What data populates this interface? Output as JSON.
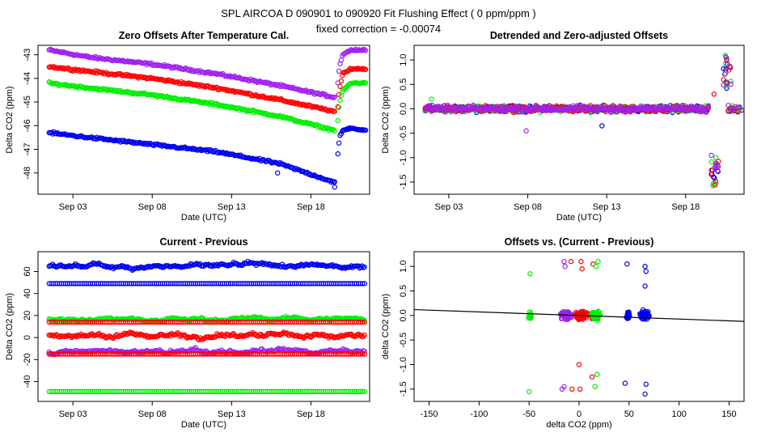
{
  "header": {
    "title": "SPL   AIRCOA D   090901 to 090920   Fit Flushing Effect ( 0 ppm/ppm )",
    "subtitle": "fixed correction = -0.00074"
  },
  "colors": {
    "purple": "#a020f0",
    "red": "#ff0000",
    "green": "#00ee00",
    "blue": "#0000ee",
    "axis": "#000000"
  },
  "chart_data": [
    {
      "type": "scatter",
      "title": "Zero Offsets After Temperature Cal.",
      "xlabel": "Date (UTC)",
      "ylabel": "Delta CO2 (ppm)",
      "xlim": [
        0.8,
        21.7
      ],
      "ylim": [
        -48.9,
        -42.6
      ],
      "xticks": [
        {
          "v": 3,
          "label": "Sep 03"
        },
        {
          "v": 8,
          "label": "Sep 08"
        },
        {
          "v": 13,
          "label": "Sep 13"
        },
        {
          "v": 18,
          "label": "Sep 18"
        }
      ],
      "yticks": [
        -48,
        -47,
        -46,
        -45,
        -44,
        -43
      ],
      "series": [
        {
          "name": "purple",
          "x": [
            1.5,
            4,
            8,
            12,
            16,
            19.5
          ],
          "y": [
            -42.8,
            -43.1,
            -43.4,
            -43.8,
            -44.3,
            -44.8
          ]
        },
        {
          "name": "red",
          "x": [
            1.5,
            4,
            8,
            12,
            16,
            19.5
          ],
          "y": [
            -43.5,
            -43.7,
            -44.0,
            -44.4,
            -44.9,
            -45.4
          ]
        },
        {
          "name": "green",
          "x": [
            1.5,
            4,
            8,
            12,
            16,
            19.5
          ],
          "y": [
            -44.2,
            -44.4,
            -44.7,
            -45.1,
            -45.6,
            -46.2
          ]
        },
        {
          "name": "blue",
          "x": [
            1.5,
            4,
            8,
            12,
            16,
            19.5
          ],
          "y": [
            -46.3,
            -46.5,
            -46.8,
            -47.1,
            -47.6,
            -48.4
          ]
        }
      ],
      "recovery": [
        {
          "name": "purple",
          "points": [
            [
              19.7,
              -44.2
            ],
            [
              19.8,
              -43.5
            ],
            [
              20,
              -43.0
            ],
            [
              20.5,
              -42.8
            ],
            [
              21.5,
              -42.8
            ]
          ]
        },
        {
          "name": "red",
          "points": [
            [
              19.7,
              -45.2
            ],
            [
              19.8,
              -44.5
            ],
            [
              20,
              -43.8
            ],
            [
              20.5,
              -43.6
            ],
            [
              21.5,
              -43.6
            ]
          ]
        },
        {
          "name": "green",
          "points": [
            [
              19.7,
              -45.8
            ],
            [
              19.8,
              -45.0
            ],
            [
              20,
              -44.5
            ],
            [
              20.5,
              -44.2
            ],
            [
              21.5,
              -44.2
            ]
          ]
        },
        {
          "name": "blue",
          "points": [
            [
              19.7,
              -47.2
            ],
            [
              19.8,
              -46.5
            ],
            [
              20,
              -46.2
            ],
            [
              20.5,
              -46.1
            ],
            [
              21.5,
              -46.2
            ]
          ]
        }
      ],
      "outliers": [
        {
          "name": "blue",
          "x": 15.9,
          "y": -48.0
        },
        {
          "name": "blue",
          "x": 19.5,
          "y": -48.6
        }
      ]
    },
    {
      "type": "scatter",
      "title": "Detrended and Zero-adjusted Offsets",
      "xlabel": "Date (UTC)",
      "ylabel": "Delta CO2 (ppm)",
      "xlim": [
        0.8,
        21.7
      ],
      "ylim": [
        -1.75,
        1.3
      ],
      "xticks": [
        {
          "v": 3,
          "label": "Sep 03"
        },
        {
          "v": 8,
          "label": "Sep 08"
        },
        {
          "v": 13,
          "label": "Sep 13"
        },
        {
          "v": 18,
          "label": "Sep 18"
        }
      ],
      "yticks": [
        -1.5,
        -1.0,
        -0.5,
        0.0,
        0.5,
        1.0
      ],
      "series_order": [
        "blue",
        "green",
        "red",
        "purple"
      ],
      "baseline_range": [
        1.5,
        19.5
      ],
      "spike_high": {
        "x": [
          20.4,
          20.9
        ],
        "y": [
          0.4,
          1.1
        ]
      },
      "spike_low": {
        "x": [
          19.6,
          20.1
        ],
        "y": [
          -1.6,
          -0.9
        ]
      },
      "tail_range": [
        20.7,
        21.6
      ],
      "outliers": [
        {
          "name": "purple",
          "x": 7.9,
          "y": -0.45
        },
        {
          "name": "blue",
          "x": 12.7,
          "y": -0.35
        },
        {
          "name": "green",
          "x": 1.9,
          "y": 0.2
        },
        {
          "name": "red",
          "x": 19.8,
          "y": 0.3
        }
      ]
    },
    {
      "type": "scatter",
      "title": "Current - Previous",
      "xlabel": "Date (UTC)",
      "ylabel": "Delta CO2 (ppm)",
      "xlim": [
        0.8,
        21.7
      ],
      "ylim": [
        -58,
        78
      ],
      "xticks": [
        {
          "v": 3,
          "label": "Sep 03"
        },
        {
          "v": 8,
          "label": "Sep 08"
        },
        {
          "v": 13,
          "label": "Sep 13"
        },
        {
          "v": 18,
          "label": "Sep 18"
        }
      ],
      "yticks": [
        -40,
        -20,
        0,
        20,
        40,
        60
      ],
      "x_range": [
        1.5,
        21.4
      ],
      "series": [
        {
          "name": "blue",
          "level": 65,
          "noise": 5
        },
        {
          "name": "blue",
          "level": 49,
          "noise": 0
        },
        {
          "name": "green",
          "level": 17,
          "noise": 4
        },
        {
          "name": "red",
          "level": 14,
          "noise": 0
        },
        {
          "name": "red",
          "level": 2,
          "noise": 6
        },
        {
          "name": "purple",
          "level": -13,
          "noise": 5
        },
        {
          "name": "red",
          "level": -15,
          "noise": 0
        },
        {
          "name": "green",
          "level": -49,
          "noise": 0
        }
      ]
    },
    {
      "type": "scatter",
      "title": "Offsets vs. (Current - Previous)",
      "xlabel": "delta CO2 (ppm)",
      "ylabel": "delta CO2 (ppm)",
      "xlim": [
        -165,
        165
      ],
      "ylim": [
        -1.75,
        1.3
      ],
      "xticks": [
        -150,
        -100,
        -50,
        0,
        50,
        100,
        150
      ],
      "yticks": [
        -1.5,
        -1.0,
        -0.5,
        0.0,
        0.5,
        1.0
      ],
      "fit_line": {
        "x": [
          -165,
          165
        ],
        "y": [
          0.12,
          -0.12
        ]
      },
      "clusters": [
        {
          "name": "green",
          "x": -49,
          "spread": 2
        },
        {
          "name": "purple",
          "x": -13,
          "spread": 8
        },
        {
          "name": "red",
          "x": 2,
          "spread": 8
        },
        {
          "name": "red",
          "x": 14,
          "spread": 2
        },
        {
          "name": "green",
          "x": 17,
          "spread": 6
        },
        {
          "name": "blue",
          "x": 49,
          "spread": 2
        },
        {
          "name": "blue",
          "x": 66,
          "spread": 7
        }
      ],
      "extremes": [
        {
          "name": "purple",
          "x": -15,
          "y": 1.1
        },
        {
          "name": "purple",
          "x": -14,
          "y": 1.0
        },
        {
          "name": "purple",
          "x": -15,
          "y": -1.45
        },
        {
          "name": "purple",
          "x": -17,
          "y": -1.5
        },
        {
          "name": "red",
          "x": -8,
          "y": 1.1
        },
        {
          "name": "red",
          "x": -7,
          "y": -1.5
        },
        {
          "name": "red",
          "x": 2,
          "y": 1.1
        },
        {
          "name": "red",
          "x": 3,
          "y": 0.95
        },
        {
          "name": "red",
          "x": 0,
          "y": -1.0
        },
        {
          "name": "red",
          "x": 1,
          "y": -1.5
        },
        {
          "name": "red",
          "x": 14,
          "y": 1.05
        },
        {
          "name": "red",
          "x": 13,
          "y": -1.25
        },
        {
          "name": "green",
          "x": 19,
          "y": 1.1
        },
        {
          "name": "green",
          "x": 17,
          "y": 1.0
        },
        {
          "name": "green",
          "x": 18,
          "y": -1.2
        },
        {
          "name": "green",
          "x": 16,
          "y": -1.45
        },
        {
          "name": "green",
          "x": -49,
          "y": 0.85
        },
        {
          "name": "green",
          "x": -50,
          "y": -1.55
        },
        {
          "name": "blue",
          "x": 48,
          "y": 1.05
        },
        {
          "name": "blue",
          "x": 46,
          "y": -1.38
        },
        {
          "name": "blue",
          "x": 66,
          "y": 1.0
        },
        {
          "name": "blue",
          "x": 67,
          "y": 0.9
        },
        {
          "name": "blue",
          "x": 66,
          "y": 0.6
        },
        {
          "name": "blue",
          "x": 67,
          "y": -1.4
        },
        {
          "name": "blue",
          "x": 66,
          "y": -1.6
        }
      ]
    }
  ]
}
